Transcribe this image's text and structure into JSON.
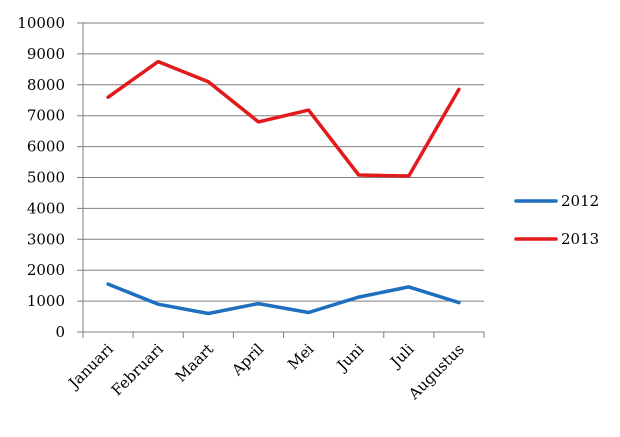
{
  "chart_data": {
    "type": "line",
    "categories": [
      "Januari",
      "Februari",
      "Maart",
      "April",
      "Mei",
      "Juni",
      "Juli",
      "Augustus"
    ],
    "series": [
      {
        "name": "2012",
        "color": "#1f6fbf",
        "values": [
          1550,
          900,
          600,
          920,
          630,
          1130,
          1460,
          950
        ]
      },
      {
        "name": "2013",
        "color": "#e31a1c",
        "values": [
          7600,
          8750,
          8100,
          6800,
          7180,
          5080,
          5050,
          7850
        ]
      }
    ],
    "yticks": [
      "0",
      "1000",
      "2000",
      "3000",
      "4000",
      "5000",
      "6000",
      "7000",
      "8000",
      "9000",
      "10000"
    ],
    "ylim": [
      0,
      10000
    ],
    "grid": true,
    "legend": "right"
  }
}
